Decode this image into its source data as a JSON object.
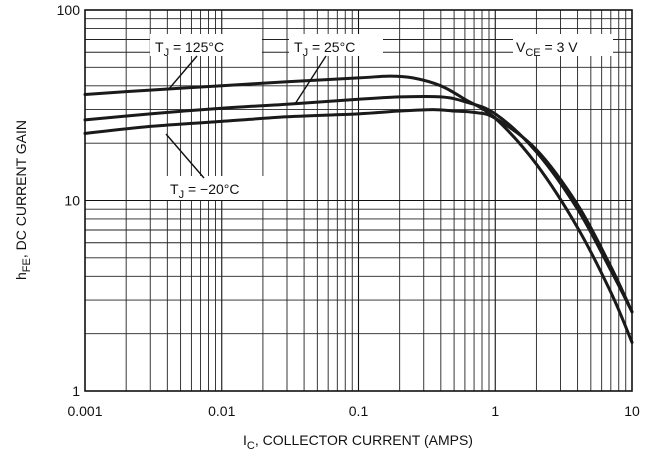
{
  "chart_data": {
    "type": "line",
    "title": "",
    "xlabel_main": "I",
    "xlabel_sub": "C",
    "xlabel_rest": ", COLLECTOR CURRENT (AMPS)",
    "ylabel_main": "h",
    "ylabel_sub": "FE",
    "ylabel_rest": ", DC CURRENT GAIN",
    "x_scale": "log",
    "y_scale": "log",
    "xlim": [
      0.001,
      10
    ],
    "ylim": [
      1,
      100
    ],
    "grid": true,
    "x_ticks": [
      "0.001",
      "0.01",
      "0.1",
      "1",
      "10"
    ],
    "y_ticks": [
      "1",
      "10",
      "100"
    ],
    "conditions": {
      "main": "V",
      "sub": "CE",
      "rest": " = 3 V"
    },
    "series": [
      {
        "label_main": "T",
        "label_sub": "J",
        "label_rest": " = 125°C",
        "x": [
          0.001,
          0.003,
          0.01,
          0.03,
          0.1,
          0.17,
          0.25,
          0.4,
          0.6,
          1.0,
          2.0,
          4.0,
          7.0,
          10.0
        ],
        "y": [
          36,
          38,
          40,
          42,
          44,
          45,
          44,
          40,
          34,
          27,
          15.5,
          7.2,
          3.3,
          1.8
        ]
      },
      {
        "label_main": "T",
        "label_sub": "J",
        "label_rest": " = 25°C",
        "x": [
          0.001,
          0.003,
          0.01,
          0.03,
          0.1,
          0.2,
          0.4,
          0.6,
          1.0,
          2.0,
          4.0,
          7.0,
          10.0
        ],
        "y": [
          26.5,
          28.5,
          30.5,
          32,
          34,
          35,
          35,
          33,
          28.5,
          18,
          9,
          4.3,
          2.6
        ]
      },
      {
        "label_main": "T",
        "label_sub": "J",
        "label_rest": " = −20°C",
        "x": [
          0.001,
          0.003,
          0.01,
          0.03,
          0.1,
          0.2,
          0.35,
          0.5,
          0.7,
          1.0,
          2.0,
          4.0,
          7.0,
          10.0
        ],
        "y": [
          22.5,
          24.5,
          26,
          27.5,
          28.5,
          29.5,
          30,
          29.5,
          29,
          27,
          18.5,
          9.5,
          4.5,
          2.6
        ]
      }
    ]
  }
}
